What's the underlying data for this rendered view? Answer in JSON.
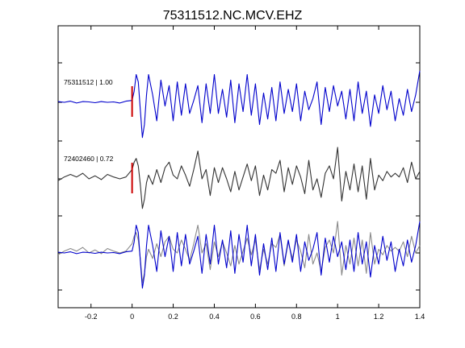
{
  "chart_data": {
    "type": "line",
    "title": "75311512.NC.MCV.EHZ",
    "xlabel": "",
    "ylabel": "",
    "xlim": [
      -0.36,
      1.4
    ],
    "x_ticks": [
      -0.2,
      0,
      0.2,
      0.4,
      0.6,
      0.8,
      1,
      1.2,
      1.4
    ],
    "x_tick_labels": [
      "-0.2",
      "0",
      "0.2",
      "0.4",
      "0.6",
      "0.8",
      "1",
      "1.2",
      "1.4"
    ],
    "grid": false,
    "pick_time": 0,
    "colors": {
      "master": "#0000cc",
      "match": "#333333",
      "overlay": "#8a8a8a",
      "pick": "#cc0000",
      "axis": "#000000"
    },
    "series": [
      {
        "label": "75311512 | 1.00",
        "color": "#0000cc",
        "panel": 1,
        "x": [
          -0.36,
          -0.33,
          -0.3,
          -0.27,
          -0.24,
          -0.21,
          -0.18,
          -0.15,
          -0.12,
          -0.09,
          -0.06,
          -0.03,
          0,
          0.01,
          0.02,
          0.03,
          0.04,
          0.05,
          0.06,
          0.07,
          0.08,
          0.1,
          0.12,
          0.14,
          0.16,
          0.18,
          0.2,
          0.22,
          0.24,
          0.26,
          0.28,
          0.3,
          0.32,
          0.34,
          0.36,
          0.38,
          0.4,
          0.42,
          0.44,
          0.46,
          0.48,
          0.5,
          0.52,
          0.54,
          0.56,
          0.58,
          0.6,
          0.62,
          0.64,
          0.66,
          0.68,
          0.7,
          0.72,
          0.74,
          0.76,
          0.78,
          0.8,
          0.82,
          0.84,
          0.86,
          0.88,
          0.9,
          0.92,
          0.94,
          0.96,
          0.98,
          1,
          1.02,
          1.04,
          1.06,
          1.08,
          1.1,
          1.12,
          1.14,
          1.16,
          1.18,
          1.2,
          1.22,
          1.24,
          1.26,
          1.28,
          1.3,
          1.32,
          1.34,
          1.36,
          1.38,
          1.4
        ],
        "values": [
          0.02,
          0.0,
          0.03,
          -0.02,
          0.02,
          0.01,
          -0.01,
          0.02,
          0.0,
          0.01,
          -0.02,
          0.03,
          0.05,
          0.3,
          0.75,
          0.55,
          -0.2,
          -0.95,
          -0.6,
          0.2,
          0.75,
          0.2,
          -0.5,
          0.6,
          -0.1,
          0.45,
          -0.5,
          0.55,
          -0.35,
          0.5,
          -0.3,
          0.05,
          0.45,
          -0.55,
          0.5,
          -0.3,
          0.75,
          -0.3,
          0.35,
          -0.4,
          0.6,
          -0.55,
          0.5,
          -0.25,
          0.75,
          -0.35,
          0.5,
          -0.6,
          0.25,
          -0.45,
          0.4,
          -0.5,
          0.55,
          -0.3,
          0.35,
          -0.25,
          0.5,
          -0.5,
          0.3,
          -0.2,
          0.1,
          0.55,
          -0.6,
          0.4,
          -0.25,
          0.45,
          -0.1,
          0.3,
          -0.45,
          0.35,
          -0.5,
          0.55,
          -0.3,
          0.3,
          -0.65,
          0.2,
          -0.3,
          0.45,
          -0.2,
          0.3,
          -0.5,
          0.1,
          -0.35,
          0.35,
          -0.25,
          0.2,
          0.85
        ]
      },
      {
        "label": "72402460 | 0.72",
        "color": "#333333",
        "panel": 2,
        "x": [
          -0.36,
          -0.33,
          -0.3,
          -0.27,
          -0.24,
          -0.21,
          -0.18,
          -0.15,
          -0.12,
          -0.09,
          -0.06,
          -0.03,
          0,
          0.01,
          0.02,
          0.03,
          0.04,
          0.05,
          0.06,
          0.07,
          0.08,
          0.1,
          0.12,
          0.14,
          0.16,
          0.18,
          0.2,
          0.22,
          0.24,
          0.26,
          0.28,
          0.3,
          0.32,
          0.34,
          0.36,
          0.38,
          0.4,
          0.42,
          0.44,
          0.46,
          0.48,
          0.5,
          0.52,
          0.54,
          0.56,
          0.58,
          0.6,
          0.62,
          0.64,
          0.66,
          0.68,
          0.7,
          0.72,
          0.74,
          0.76,
          0.78,
          0.8,
          0.82,
          0.84,
          0.86,
          0.88,
          0.9,
          0.92,
          0.94,
          0.96,
          0.98,
          1,
          1.02,
          1.04,
          1.06,
          1.08,
          1.1,
          1.12,
          1.14,
          1.16,
          1.18,
          1.2,
          1.22,
          1.24,
          1.26,
          1.28,
          1.3,
          1.32,
          1.34,
          1.36,
          1.38,
          1.4
        ],
        "values": [
          -0.05,
          0.05,
          0.12,
          0.05,
          0.15,
          0.0,
          0.08,
          -0.02,
          0.12,
          0.05,
          0.0,
          0.05,
          0.25,
          0.45,
          0.55,
          0.35,
          -0.15,
          -0.8,
          -0.55,
          -0.1,
          0.1,
          -0.15,
          0.25,
          -0.1,
          0.3,
          0.45,
          0.1,
          0.0,
          0.35,
          0.1,
          -0.2,
          0.25,
          0.75,
          0.0,
          0.25,
          -0.45,
          0.3,
          -0.1,
          0.3,
          0.0,
          -0.35,
          0.2,
          -0.3,
          0.05,
          0.4,
          -0.05,
          0.35,
          -0.45,
          0.1,
          -0.3,
          0.25,
          0.15,
          0.5,
          -0.35,
          0.3,
          -0.15,
          0.35,
          0.05,
          -0.4,
          0.5,
          -0.3,
          0.0,
          -0.5,
          0.15,
          0.35,
          0.0,
          0.85,
          -0.6,
          0.2,
          -0.3,
          0.4,
          -0.35,
          0.35,
          -0.55,
          0.55,
          -0.3,
          0.1,
          -0.05,
          0.2,
          0.05,
          0.15,
          0.05,
          0.3,
          -0.1,
          0.45,
          0.0,
          0.2
        ]
      }
    ]
  }
}
